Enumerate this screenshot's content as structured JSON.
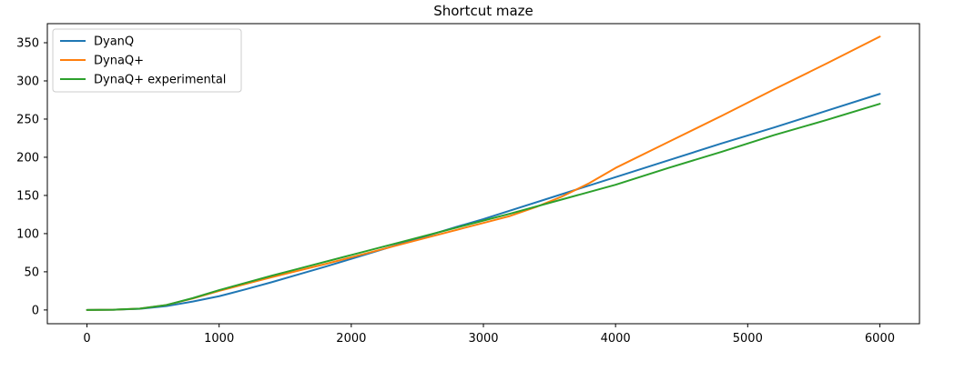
{
  "chart_data": {
    "type": "line",
    "title": "Shortcut maze",
    "xlabel": "",
    "ylabel": "",
    "xlim": [
      -300,
      6300
    ],
    "ylim": [
      -18,
      375
    ],
    "xticks": [
      0,
      1000,
      2000,
      3000,
      4000,
      5000,
      6000
    ],
    "yticks": [
      0,
      50,
      100,
      150,
      200,
      250,
      300,
      350
    ],
    "xtick_labels": [
      "0",
      "1000",
      "2000",
      "3000",
      "4000",
      "5000",
      "6000"
    ],
    "ytick_labels": [
      "0",
      "50",
      "100",
      "150",
      "200",
      "250",
      "300",
      "350"
    ],
    "grid": false,
    "legend_position": "upper-left",
    "series": [
      {
        "name": "DyanQ",
        "color": "#1f77b4",
        "points": [
          [
            0,
            0
          ],
          [
            200,
            0.3
          ],
          [
            400,
            1.5
          ],
          [
            600,
            5
          ],
          [
            800,
            11
          ],
          [
            1000,
            18
          ],
          [
            1200,
            27
          ],
          [
            1400,
            36.5
          ],
          [
            1600,
            46.5
          ],
          [
            1800,
            56.5
          ],
          [
            2000,
            67
          ],
          [
            2400,
            88
          ],
          [
            2800,
            109
          ],
          [
            3000,
            119
          ],
          [
            3200,
            130
          ],
          [
            3600,
            152
          ],
          [
            4000,
            174
          ],
          [
            4400,
            196
          ],
          [
            4800,
            218
          ],
          [
            5200,
            239
          ],
          [
            5600,
            261
          ],
          [
            6000,
            283
          ]
        ]
      },
      {
        "name": "DynaQ+",
        "color": "#ff7f0e",
        "points": [
          [
            0,
            0
          ],
          [
            200,
            0.3
          ],
          [
            400,
            1.8
          ],
          [
            600,
            6.5
          ],
          [
            800,
            15
          ],
          [
            1000,
            25
          ],
          [
            1200,
            34
          ],
          [
            1400,
            43
          ],
          [
            1600,
            51.5
          ],
          [
            1800,
            60
          ],
          [
            2000,
            69
          ],
          [
            2400,
            87
          ],
          [
            2800,
            105
          ],
          [
            3000,
            114
          ],
          [
            3200,
            123
          ],
          [
            3400,
            135
          ],
          [
            3600,
            149
          ],
          [
            3800,
            166
          ],
          [
            4000,
            186
          ],
          [
            4400,
            220
          ],
          [
            4800,
            254
          ],
          [
            5200,
            289
          ],
          [
            5600,
            323
          ],
          [
            6000,
            358
          ]
        ]
      },
      {
        "name": "DynaQ+ experimental",
        "color": "#2ca02c",
        "points": [
          [
            0,
            0
          ],
          [
            200,
            0.3
          ],
          [
            400,
            1.8
          ],
          [
            600,
            6.5
          ],
          [
            800,
            15.5
          ],
          [
            1000,
            26
          ],
          [
            1200,
            35.5
          ],
          [
            1400,
            45
          ],
          [
            1600,
            54
          ],
          [
            1800,
            63
          ],
          [
            2000,
            72
          ],
          [
            2400,
            90
          ],
          [
            2800,
            108
          ],
          [
            3000,
            117
          ],
          [
            3200,
            126
          ],
          [
            3600,
            145
          ],
          [
            4000,
            164
          ],
          [
            4400,
            186
          ],
          [
            4800,
            207
          ],
          [
            5200,
            229
          ],
          [
            5600,
            249
          ],
          [
            6000,
            270
          ]
        ]
      }
    ]
  }
}
